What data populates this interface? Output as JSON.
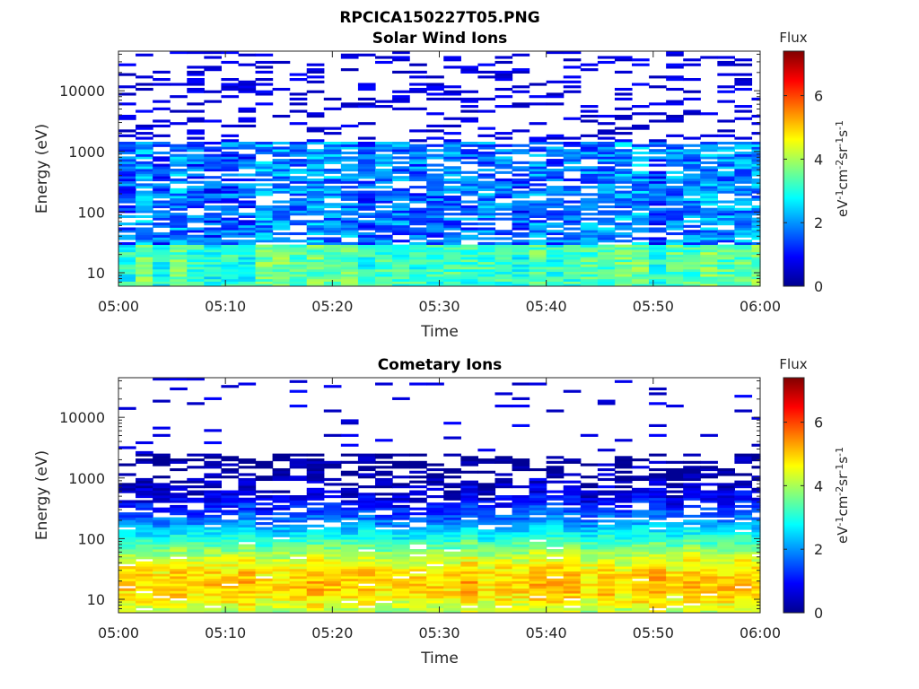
{
  "figure_title": "RPCICA150227T05.PNG",
  "colorbar": {
    "title": "Flux",
    "unit_parts": [
      "eV",
      "-1",
      "cm",
      "-2",
      "sr",
      "-1",
      "s",
      "-1"
    ],
    "range": [
      0,
      7.4
    ],
    "ticks": [
      "0",
      "2",
      "4",
      "6"
    ],
    "colormap": "jet"
  },
  "chart_data": [
    {
      "type": "heatmap",
      "title": "Solar Wind Ions",
      "xlabel": "Time",
      "ylabel": "Energy (eV)",
      "y_scale": "log",
      "ylim": [
        6,
        45000
      ],
      "x_ticks": [
        "05:00",
        "05:10",
        "05:20",
        "05:30",
        "05:40",
        "05:50",
        "06:00"
      ],
      "y_ticks": [
        "10",
        "100",
        "1000",
        "10000"
      ],
      "xlim": [
        "05:00",
        "06:00"
      ],
      "time_step_s": 96,
      "profile": {
        "low_band_eV": [
          6,
          30
        ],
        "low_band_flux": 3.3,
        "mid_band_eV": [
          30,
          1400
        ],
        "mid_band_flux": 1.8,
        "sparse_above_eV": 1400,
        "sparse_flux": 0.4
      }
    },
    {
      "type": "heatmap",
      "title": "Cometary Ions",
      "xlabel": "Time",
      "ylabel": "Energy (eV)",
      "y_scale": "log",
      "ylim": [
        6,
        45000
      ],
      "x_ticks": [
        "05:00",
        "05:10",
        "05:20",
        "05:30",
        "05:40",
        "05:50",
        "06:00"
      ],
      "y_ticks": [
        "10",
        "100",
        "1000",
        "10000"
      ],
      "xlim": [
        "05:00",
        "06:00"
      ],
      "time_step_s": 96,
      "profile": {
        "peak_eV": 18,
        "peak_flux": 5.0,
        "upper_edge_eV": 2500,
        "sparse_flux": 0.4
      }
    }
  ]
}
